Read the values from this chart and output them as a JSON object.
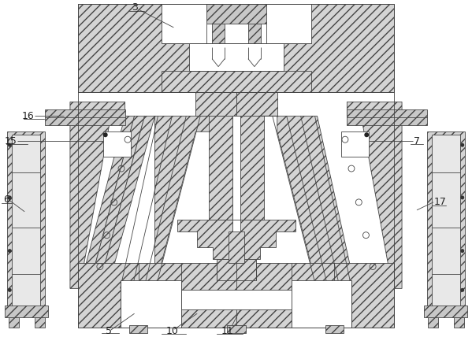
{
  "bg_color": "#ffffff",
  "line_color": "#444444",
  "hatch_fc": "#d4d4d4",
  "hatch_fc2": "#c8c8c8",
  "white": "#ffffff",
  "figsize": [
    5.99,
    4.28
  ],
  "dpi": 100,
  "label_fs": 9,
  "label_color": "#222222"
}
